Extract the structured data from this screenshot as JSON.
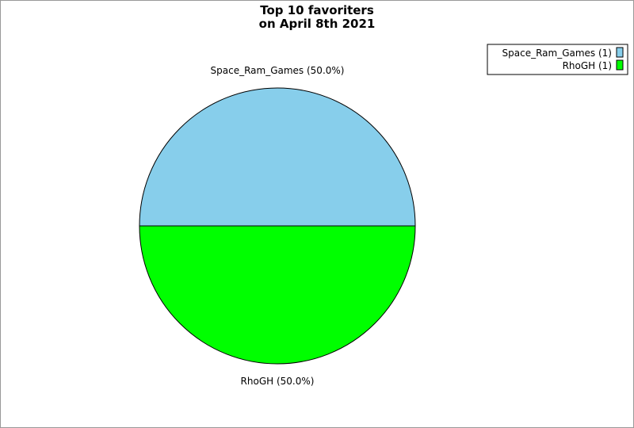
{
  "chart_data": {
    "type": "pie",
    "title": [
      "Top 10 favoriters",
      "on April 8th 2021"
    ],
    "slices": [
      {
        "label": "Space_Ram_Games",
        "value": 1,
        "percent": "50.0%",
        "color": "#87ceeb",
        "legend": "Space_Ram_Games (1)",
        "slice_label": "Space_Ram_Games (50.0%)"
      },
      {
        "label": "RhoGH",
        "value": 1,
        "percent": "50.0%",
        "color": "#00ff00",
        "legend": "RhoGH (1)",
        "slice_label": "RhoGH (50.0%)"
      }
    ],
    "legend_position": "top-right"
  }
}
